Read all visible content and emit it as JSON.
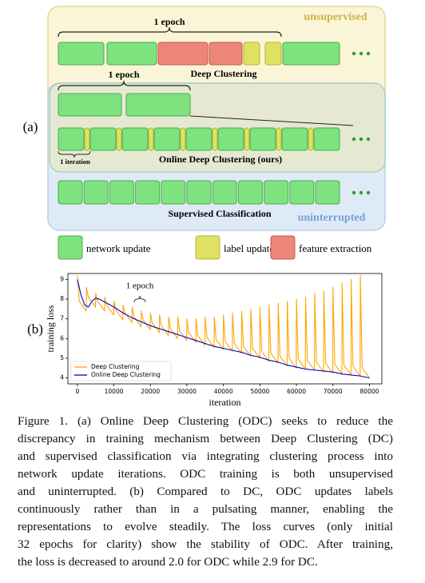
{
  "figure_a": {
    "label": "(a)",
    "epoch_label": "1 epoch",
    "unsupervised": "unsupervised",
    "zoom_epoch_label": "1 epoch",
    "deep_clustering": "Deep Clustering",
    "iteration_label": "1 iteration",
    "odc": "Online Deep Clustering (ours)",
    "supervised": "Supervised Classification",
    "uninterrupted": "uninterrupted",
    "legend": [
      "network update",
      "label update",
      "feature extraction"
    ]
  },
  "chart_data": {
    "type": "line",
    "label": "(b)",
    "xlabel": "iteration",
    "ylabel": "training loss",
    "annotation": "1 epoch",
    "xlim": [
      -2600,
      83400
    ],
    "ylim": [
      3.7,
      9.3
    ],
    "xticks": [
      0,
      10000,
      20000,
      30000,
      40000,
      50000,
      60000,
      70000,
      80000
    ],
    "yticks": [
      4,
      5,
      6,
      7,
      8,
      9
    ],
    "legend": "lower left",
    "series": [
      {
        "name": "Deep Clustering",
        "color": "#ffa500",
        "x": [
          0,
          500,
          2450,
          2500,
          3000,
          4950,
          5000,
          5500,
          7450,
          7500,
          8000,
          9950,
          10000,
          10500,
          12450,
          12500,
          13000,
          14950,
          15000,
          15500,
          17450,
          17500,
          18000,
          19950,
          20000,
          20500,
          22450,
          22500,
          23000,
          24950,
          25000,
          25500,
          27450,
          27500,
          28000,
          29950,
          30000,
          30500,
          32450,
          32500,
          33000,
          34950,
          35000,
          35500,
          37450,
          37500,
          38000,
          39950,
          40000,
          40500,
          42450,
          42500,
          43000,
          44950,
          45000,
          45500,
          47450,
          47500,
          48000,
          49950,
          50000,
          50500,
          52450,
          52500,
          53000,
          54950,
          55000,
          55500,
          57450,
          57500,
          58000,
          59950,
          60000,
          60500,
          62450,
          62500,
          63000,
          64950,
          65000,
          65500,
          67450,
          67500,
          68000,
          69950,
          70000,
          70500,
          72450,
          72500,
          73000,
          74950,
          75000,
          75500,
          77450,
          77500,
          78000,
          79950
        ],
        "values": [
          9.2,
          7.9,
          7.4,
          8.6,
          8.1,
          7.6,
          8.3,
          7.9,
          7.4,
          8.1,
          7.7,
          7.2,
          7.9,
          7.45,
          6.95,
          7.7,
          7.3,
          6.8,
          7.6,
          7.1,
          6.6,
          7.4,
          6.95,
          6.45,
          7.3,
          6.8,
          6.3,
          7.2,
          6.65,
          6.15,
          7.1,
          6.5,
          6.0,
          7.1,
          6.4,
          5.9,
          7.0,
          6.3,
          5.8,
          7.0,
          6.15,
          5.65,
          7.1,
          6.05,
          5.55,
          7.1,
          5.95,
          5.45,
          7.2,
          5.85,
          5.35,
          7.3,
          5.75,
          5.25,
          7.4,
          5.6,
          5.1,
          7.5,
          5.5,
          5.0,
          7.6,
          5.35,
          4.85,
          7.7,
          5.25,
          4.75,
          7.8,
          5.1,
          4.6,
          7.9,
          5.0,
          4.5,
          8.0,
          4.95,
          4.45,
          8.1,
          4.88,
          4.38,
          8.3,
          4.8,
          4.3,
          8.4,
          4.75,
          4.25,
          8.6,
          4.7,
          4.2,
          8.8,
          4.65,
          4.15,
          9.0,
          4.6,
          4.1,
          9.2,
          4.52,
          4.02
        ]
      },
      {
        "name": "Online Deep Clustering",
        "color": "#0000cc",
        "x": [
          0,
          1000,
          2000,
          3000,
          4000,
          5000,
          6000,
          8000,
          10000,
          12500,
          15000,
          17500,
          20000,
          22500,
          25000,
          27500,
          30000,
          32500,
          35000,
          37500,
          40000,
          42500,
          45000,
          47500,
          50000,
          52500,
          55000,
          57500,
          60000,
          62500,
          65000,
          67500,
          70000,
          72500,
          75000,
          77500,
          80000
        ],
        "values": [
          9.0,
          8.2,
          7.7,
          7.6,
          7.9,
          8.05,
          8.0,
          7.8,
          7.6,
          7.3,
          7.05,
          6.85,
          6.65,
          6.5,
          6.35,
          6.2,
          6.05,
          5.9,
          5.75,
          5.6,
          5.5,
          5.4,
          5.3,
          5.15,
          5.05,
          4.9,
          4.8,
          4.65,
          4.55,
          4.45,
          4.4,
          4.35,
          4.3,
          4.2,
          4.15,
          4.1,
          4.0
        ]
      }
    ]
  },
  "caption": {
    "lines": [
      "Figure 1. (a) Online Deep Clustering (ODC) seeks to reduce the",
      "discrepancy in training mechanism between Deep Clustering (DC)",
      "and supervised classification via integrating clustering process into",
      "network update iterations.  ODC training is both unsupervised",
      "and uninterrupted.  (b) Compared to DC, ODC updates labels",
      "continuously rather than in a pulsating manner, enabling the",
      "representations to evolve steadily.  The loss curves (only initial",
      "32 epochs for clarity) show the stability of ODC. After training,",
      "the loss is decreased to around 2.0 for ODC while 2.9 for DC."
    ]
  }
}
